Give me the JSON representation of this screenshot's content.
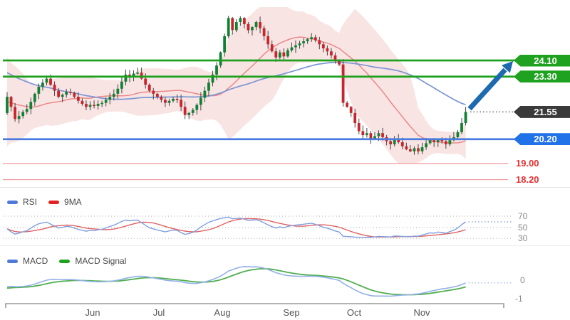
{
  "chart_data": {
    "type": "candlestick",
    "title": "",
    "months": [
      "Jun",
      "Jul",
      "Aug",
      "Sep",
      "Oct",
      "Nov"
    ],
    "last_price": 21.55,
    "price_levels": [
      {
        "label": "24.10",
        "value": 24.1,
        "role": "resistance",
        "style": "green-tag"
      },
      {
        "label": "23.30",
        "value": 23.3,
        "role": "resistance",
        "style": "green-tag"
      },
      {
        "label": "21.55",
        "value": 21.55,
        "role": "last-price",
        "style": "dark-tag"
      },
      {
        "label": "20.20",
        "value": 20.2,
        "role": "support",
        "style": "blue-tag"
      },
      {
        "label": "19.00",
        "value": 19.0,
        "role": "minor-support",
        "style": "red-text"
      },
      {
        "label": "18.20",
        "value": 18.2,
        "role": "minor-support",
        "style": "red-text"
      }
    ],
    "projection_arrow": {
      "from_price": 21.55,
      "to_price": 24.1,
      "direction": "up"
    },
    "candles_closes": [
      22.3,
      21.8,
      21.2,
      21.35,
      21.55,
      21.7,
      22.05,
      22.45,
      22.8,
      23.0,
      23.2,
      22.9,
      22.6,
      22.3,
      22.4,
      22.55,
      22.5,
      22.3,
      22.1,
      21.95,
      21.8,
      21.9,
      21.85,
      21.95,
      22.0,
      22.15,
      22.3,
      22.45,
      22.7,
      23.05,
      23.4,
      23.3,
      23.45,
      23.5,
      23.2,
      22.9,
      22.6,
      22.45,
      22.3,
      22.15,
      22.0,
      22.1,
      22.2,
      22.15,
      21.8,
      21.4,
      21.5,
      21.65,
      21.9,
      22.25,
      22.6,
      23.0,
      23.4,
      23.85,
      24.5,
      25.3,
      26.2,
      25.6,
      26.0,
      26.2,
      25.9,
      25.6,
      25.75,
      26.0,
      25.7,
      25.3,
      24.9,
      24.55,
      24.25,
      24.5,
      24.3,
      24.6,
      24.75,
      24.85,
      24.95,
      25.05,
      25.15,
      25.25,
      25.1,
      24.9,
      24.7,
      24.55,
      24.35,
      24.1,
      23.9,
      22.0,
      21.8,
      21.5,
      21.0,
      20.6,
      20.4,
      20.5,
      20.2,
      20.35,
      20.5,
      20.3,
      20.1,
      19.95,
      20.2,
      20.05,
      19.85,
      19.7,
      19.6,
      19.75,
      19.6,
      19.8,
      20.0,
      20.15,
      20.05,
      20.2,
      20.1,
      19.95,
      20.15,
      20.3,
      20.55,
      21.0,
      21.55
    ],
    "overlays": [
      {
        "name": "Bollinger Band",
        "color": "#f3c9c9"
      },
      {
        "name": "SMA20",
        "color": "#e98989"
      },
      {
        "name": "SMA50",
        "color": "#7b96d4"
      }
    ],
    "panels": {
      "rsi": {
        "legend": [
          {
            "label": "RSI",
            "color": "#4d79d9"
          },
          {
            "label": "9MA",
            "color": "#e32222"
          }
        ],
        "ticks": [
          "70",
          "50",
          "30"
        ],
        "tick_values": [
          70,
          50,
          30
        ]
      },
      "macd": {
        "legend": [
          {
            "label": "MACD",
            "color": "#4d79d9"
          },
          {
            "label": "MACD Signal",
            "color": "#1fa31f"
          }
        ],
        "ticks": [
          "0",
          "-1"
        ],
        "tick_values": [
          0,
          -1
        ]
      }
    },
    "colors": {
      "candle_up": "#108232",
      "candle_down": "#c9252b",
      "wick": "#444444",
      "resistance_line": "#1da01d",
      "resistance_tag": "#1fa21f",
      "support_line": "#4a7ce0",
      "support_tag": "#2172e8",
      "last_price_tag": "#3a3a3a",
      "minor_level_line": "#ef9a9a",
      "minor_level_text": "#e23333",
      "arrow": "#1d6ab0",
      "bollinger_fill": "#f3c9c9",
      "sma20": "#e98989",
      "sma50": "#7b96d4",
      "rsi_line": "#7f9fe0",
      "rsi_ma": "#e06060",
      "macd_line": "#92b0e8",
      "macd_signal": "#4fae4f",
      "grid_dots": "#bbbbbb",
      "axis": "#999999"
    }
  }
}
